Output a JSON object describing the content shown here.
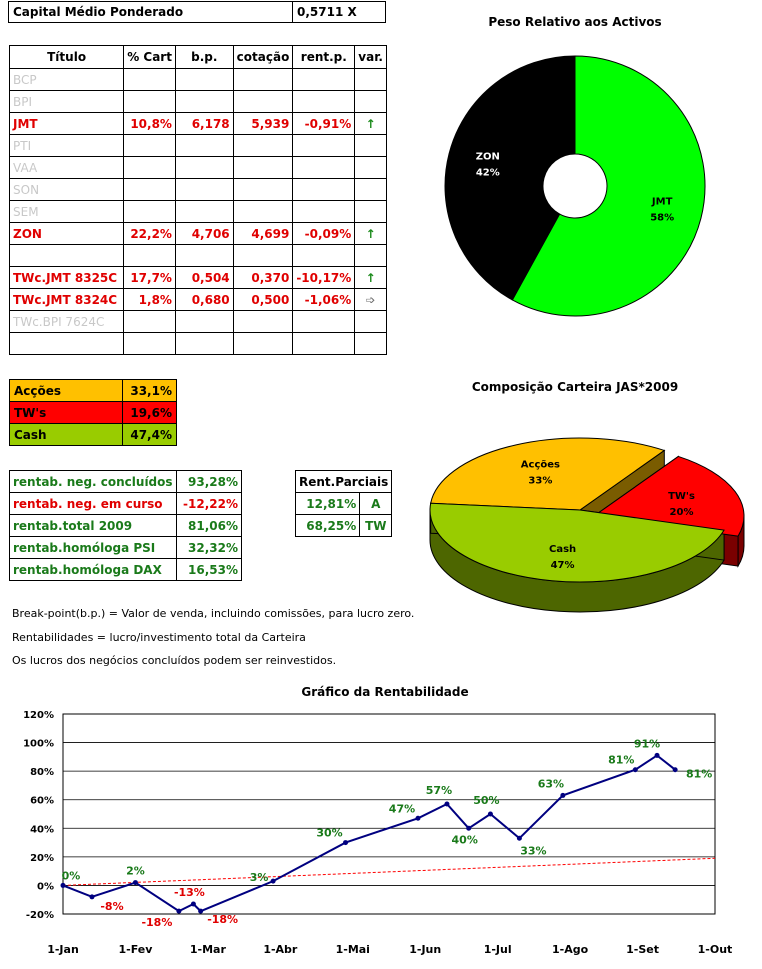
{
  "capital": {
    "label": "Capital Médio Ponderado",
    "value": "0,5711 X"
  },
  "holdings": {
    "headers": [
      "Título",
      "% Cart",
      "b.p.",
      "cotação",
      "rent.p.",
      "var."
    ],
    "rows": [
      {
        "name": "BCP",
        "pct": "",
        "bp": "",
        "quote": "",
        "rent": "",
        "var": "",
        "style": "grey"
      },
      {
        "name": "BPI",
        "pct": "",
        "bp": "",
        "quote": "",
        "rent": "",
        "var": "",
        "style": "grey"
      },
      {
        "name": "JMT",
        "pct": "10,8%",
        "bp": "6,178",
        "quote": "5,939",
        "rent": "-0,91%",
        "var": "up",
        "style": "red"
      },
      {
        "name": "PTI",
        "pct": "",
        "bp": "",
        "quote": "",
        "rent": "",
        "var": "",
        "style": "grey"
      },
      {
        "name": "VAA",
        "pct": "",
        "bp": "",
        "quote": "",
        "rent": "",
        "var": "",
        "style": "grey"
      },
      {
        "name": "SON",
        "pct": "",
        "bp": "",
        "quote": "",
        "rent": "",
        "var": "",
        "style": "grey"
      },
      {
        "name": "SEM",
        "pct": "",
        "bp": "",
        "quote": "",
        "rent": "",
        "var": "",
        "style": "grey"
      },
      {
        "name": "ZON",
        "pct": "22,2%",
        "bp": "4,706",
        "quote": "4,699",
        "rent": "-0,09%",
        "var": "up",
        "style": "red"
      },
      {
        "name": "",
        "pct": "",
        "bp": "",
        "quote": "",
        "rent": "",
        "var": "",
        "style": ""
      },
      {
        "name": "TWc.JMT 8325C",
        "pct": "17,7%",
        "bp": "0,504",
        "quote": "0,370",
        "rent": "-10,17%",
        "var": "up",
        "style": "red"
      },
      {
        "name": "TWc.JMT 8324C",
        "pct": "1,8%",
        "bp": "0,680",
        "quote": "0,500",
        "rent": "-1,06%",
        "var": "right",
        "style": "red"
      },
      {
        "name": "TWc.BPI 7624C",
        "pct": "",
        "bp": "",
        "quote": "",
        "rent": "",
        "var": "",
        "style": "grey"
      },
      {
        "name": "",
        "pct": "",
        "bp": "",
        "quote": "",
        "rent": "",
        "var": "",
        "style": ""
      }
    ]
  },
  "allocation": [
    {
      "label": "Acções",
      "value": "33,1%",
      "color": "#ffc000",
      "vcolor": "#000000"
    },
    {
      "label": "TW's",
      "value": "19,6%",
      "color": "#ff0000",
      "vcolor": "#000000"
    },
    {
      "label": "Cash",
      "value": "47,4%",
      "color": "#99cc00",
      "vcolor": "#000000"
    }
  ],
  "returns": [
    {
      "label": "rentab. neg. concluídos",
      "value": "93,28%",
      "tone": "green"
    },
    {
      "label": "rentab. neg. em curso",
      "value": "-12,22%",
      "tone": "red"
    },
    {
      "label": "rentab.total 2009",
      "value": "81,06%",
      "tone": "green"
    },
    {
      "label": "rentab.homóloga PSI",
      "value": "32,32%",
      "tone": "green"
    },
    {
      "label": "rentab.homóloga DAX",
      "value": "16,53%",
      "tone": "green"
    }
  ],
  "partial": {
    "header": "Rent.Parciais",
    "rows": [
      {
        "value": "12,81%",
        "tag": "A"
      },
      {
        "value": "68,25%",
        "tag": "TW"
      }
    ]
  },
  "notes": [
    "Break-point(b.p.) = Valor de venda, incluindo comissões, para lucro zero.",
    "Rentabilidades = lucro/investimento total da Carteira",
    "Os lucros dos negócios concluídos podem ser reinvestidos."
  ],
  "chart_data": [
    {
      "type": "pie",
      "title": "Peso Relativo aos Activos",
      "labels": [
        "JMT",
        "ZON"
      ],
      "values": [
        58,
        42
      ],
      "percent_labels": [
        "58%",
        "42%"
      ],
      "colors": [
        "#00ff00",
        "#000000"
      ],
      "label_colors": [
        "#000000",
        "#ffffff"
      ]
    },
    {
      "type": "pie",
      "title": "Composição Carteira JAS*2009",
      "labels": [
        "Acções",
        "TW's",
        "Cash"
      ],
      "values": [
        33,
        20,
        47
      ],
      "percent_labels": [
        "33%",
        "20%",
        "47%"
      ],
      "colors": [
        "#ffc000",
        "#ff0000",
        "#99cc00"
      ],
      "side_colors": [
        "#7a5c00",
        "#7a0000",
        "#4d6600"
      ]
    },
    {
      "type": "line",
      "title": "Gráfico da Rentabilidade",
      "x_ticks": [
        "1-Jan",
        "1-Fev",
        "1-Mar",
        "1-Abr",
        "1-Mai",
        "1-Jun",
        "1-Jul",
        "1-Ago",
        "1-Set",
        "1-Out"
      ],
      "y_ticks": [
        "120%",
        "100%",
        "80%",
        "60%",
        "40%",
        "20%",
        "0%",
        "-20%"
      ],
      "ylim": [
        -20,
        120
      ],
      "series": [
        {
          "name": "Rentabilidade",
          "x": [
            0,
            0.4,
            1,
            1.6,
            1.8,
            1.9,
            2.9,
            3.9,
            4.9,
            5.3,
            5.6,
            5.9,
            6.3,
            6.9,
            7.9,
            8.2
          ],
          "values": [
            0,
            -8,
            2,
            -18,
            -13,
            -18,
            3,
            30,
            47,
            57,
            40,
            50,
            33,
            63,
            81,
            91
          ],
          "end_x": 8.45,
          "end_value": 81
        }
      ],
      "point_labels": [
        {
          "i": 0,
          "text": "0%"
        },
        {
          "i": 1,
          "text": "-8%"
        },
        {
          "i": 2,
          "text": "2%"
        },
        {
          "i": 3,
          "text": "-18%"
        },
        {
          "i": 4,
          "text": "-13%"
        },
        {
          "i": 5,
          "text": "-18%"
        },
        {
          "i": 6,
          "text": "3%"
        },
        {
          "i": 7,
          "text": "30%"
        },
        {
          "i": 8,
          "text": "47%"
        },
        {
          "i": 9,
          "text": "57%"
        },
        {
          "i": 10,
          "text": "40%"
        },
        {
          "i": 11,
          "text": "50%"
        },
        {
          "i": 12,
          "text": "33%"
        },
        {
          "i": 13,
          "text": "63%"
        },
        {
          "i": 14,
          "text": "81%"
        },
        {
          "i": 15,
          "text": "91%"
        },
        {
          "i": 16,
          "text": "81%"
        }
      ],
      "trend": {
        "start": 0,
        "end": 19
      }
    }
  ]
}
